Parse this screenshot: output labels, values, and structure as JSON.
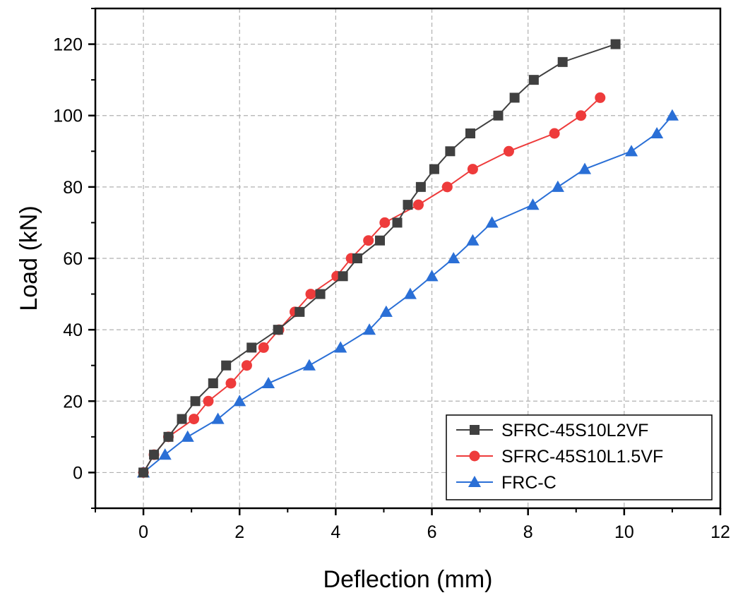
{
  "chart_data": {
    "type": "line",
    "title": "",
    "xlabel": "Deflection (mm)",
    "ylabel": "Load (kN)",
    "xlim": [
      -1,
      12
    ],
    "ylim": [
      -10,
      130
    ],
    "xticks": [
      0,
      2,
      4,
      6,
      8,
      10,
      12
    ],
    "yticks": [
      0,
      20,
      40,
      60,
      80,
      100,
      120
    ],
    "grid": true,
    "legend_position": "bottom-right",
    "series": [
      {
        "name": "SFRC-45S10L2VF",
        "color": "#404040",
        "marker": "square",
        "points": [
          [
            0,
            0
          ],
          [
            0.22,
            5
          ],
          [
            0.52,
            10
          ],
          [
            0.8,
            15
          ],
          [
            1.08,
            20
          ],
          [
            1.45,
            25
          ],
          [
            1.72,
            30
          ],
          [
            2.25,
            35
          ],
          [
            2.8,
            40
          ],
          [
            3.25,
            45
          ],
          [
            3.68,
            50
          ],
          [
            4.15,
            55
          ],
          [
            4.45,
            60
          ],
          [
            4.92,
            65
          ],
          [
            5.28,
            70
          ],
          [
            5.5,
            75
          ],
          [
            5.77,
            80
          ],
          [
            6.05,
            85
          ],
          [
            6.38,
            90
          ],
          [
            6.8,
            95
          ],
          [
            7.38,
            100
          ],
          [
            7.72,
            105
          ],
          [
            8.12,
            110
          ],
          [
            8.72,
            115
          ],
          [
            9.82,
            120
          ]
        ]
      },
      {
        "name": "SFRC-45S10L1.5VF",
        "color": "#ee3b3b",
        "marker": "circle",
        "points": [
          [
            0,
            0
          ],
          [
            0.22,
            5
          ],
          [
            0.52,
            10
          ],
          [
            1.05,
            15
          ],
          [
            1.35,
            20
          ],
          [
            1.82,
            25
          ],
          [
            2.15,
            30
          ],
          [
            2.5,
            35
          ],
          [
            2.82,
            40
          ],
          [
            3.15,
            45
          ],
          [
            3.48,
            50
          ],
          [
            4.02,
            55
          ],
          [
            4.32,
            60
          ],
          [
            4.68,
            65
          ],
          [
            5.02,
            70
          ],
          [
            5.72,
            75
          ],
          [
            6.32,
            80
          ],
          [
            6.85,
            85
          ],
          [
            7.6,
            90
          ],
          [
            8.55,
            95
          ],
          [
            9.1,
            100
          ],
          [
            9.5,
            105
          ]
        ]
      },
      {
        "name": "FRC-C",
        "color": "#2a6fd6",
        "marker": "triangle",
        "points": [
          [
            0,
            0
          ],
          [
            0.45,
            5
          ],
          [
            0.92,
            10
          ],
          [
            1.55,
            15
          ],
          [
            2.0,
            20
          ],
          [
            2.6,
            25
          ],
          [
            3.45,
            30
          ],
          [
            4.1,
            35
          ],
          [
            4.7,
            40
          ],
          [
            5.05,
            45
          ],
          [
            5.55,
            50
          ],
          [
            6.0,
            55
          ],
          [
            6.45,
            60
          ],
          [
            6.85,
            65
          ],
          [
            7.25,
            70
          ],
          [
            8.1,
            75
          ],
          [
            8.62,
            80
          ],
          [
            9.18,
            85
          ],
          [
            10.15,
            90
          ],
          [
            10.68,
            95
          ],
          [
            11.0,
            100
          ]
        ]
      }
    ]
  }
}
